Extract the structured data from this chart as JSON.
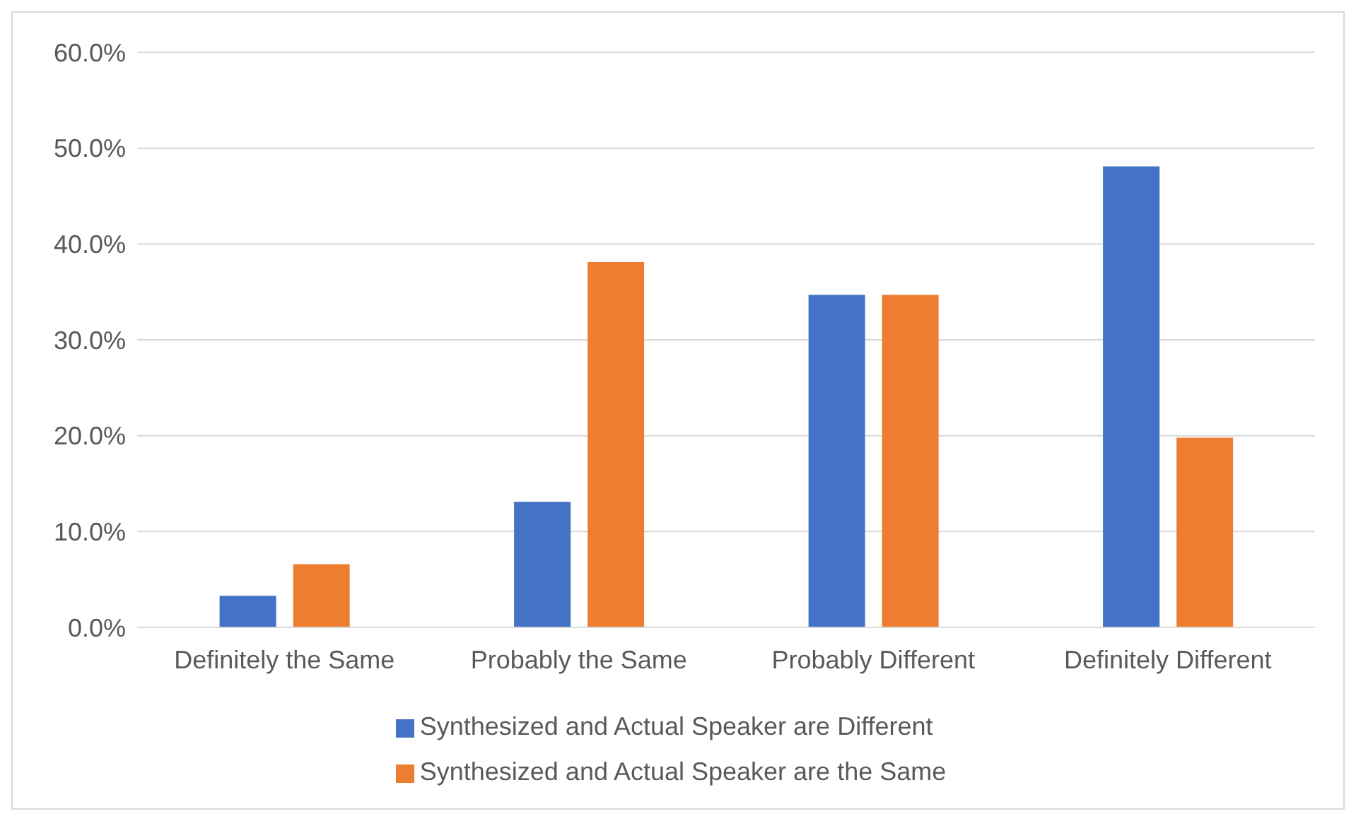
{
  "chart_data": {
    "type": "bar",
    "categories": [
      "Definitely the Same",
      "Probably the Same",
      "Probably Different",
      "Definitely Different"
    ],
    "series": [
      {
        "name": "Synthesized and Actual Speaker are Different",
        "color": "#4472c4",
        "values": [
          3.3,
          13.1,
          34.7,
          48.1
        ]
      },
      {
        "name": "Synthesized and Actual Speaker are the Same",
        "color": "#ed7d31",
        "values": [
          6.6,
          38.1,
          34.7,
          19.8
        ]
      }
    ],
    "ylim": [
      0,
      60
    ],
    "yticks": [
      {
        "value": 0,
        "label": "0.0%"
      },
      {
        "value": 10,
        "label": "10.0%"
      },
      {
        "value": 20,
        "label": "20.0%"
      },
      {
        "value": 30,
        "label": "30.0%"
      },
      {
        "value": 40,
        "label": "40.0%"
      },
      {
        "value": 50,
        "label": "50.0%"
      },
      {
        "value": 60,
        "label": "60.0%"
      }
    ],
    "grid": "y",
    "legend": "bottom"
  }
}
